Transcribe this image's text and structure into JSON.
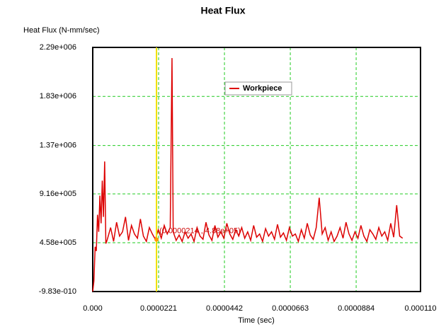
{
  "chart_data": {
    "type": "line",
    "title": "Heat Flux",
    "ylabel": "Heat Flux (N-mm/sec)",
    "xlabel": "Time (sec)",
    "xlim": [
      0,
      0.00011
    ],
    "ylim": [
      -9.83e-10,
      2290000
    ],
    "xticks": [
      {
        "value": 0,
        "label": "0.000"
      },
      {
        "value": 2.21e-05,
        "label": "0.0000221"
      },
      {
        "value": 4.42e-05,
        "label": "0.0000442"
      },
      {
        "value": 6.63e-05,
        "label": "0.0000663"
      },
      {
        "value": 8.84e-05,
        "label": "0.0000884"
      },
      {
        "value": 0.00011,
        "label": "0.000110"
      }
    ],
    "yticks": [
      {
        "value": -9.83e-10,
        "label": "-9.83e-010"
      },
      {
        "value": 458000,
        "label": "4.58e+005"
      },
      {
        "value": 916000,
        "label": "9.16e+005"
      },
      {
        "value": 1370000,
        "label": "1.37e+006"
      },
      {
        "value": 1830000,
        "label": "1.83e+006"
      },
      {
        "value": 2290000,
        "label": "2.29e+006"
      }
    ],
    "grid": true,
    "legend": "top",
    "cursor": {
      "x": 2.14e-05,
      "y": 488000,
      "label": "(0.0000214 , 4.88e+05)"
    },
    "x": [
      0,
      4e-07,
      8e-07,
      1.2e-06,
      1.6e-06,
      2e-06,
      2.4e-06,
      2.8e-06,
      3.2e-06,
      3.6e-06,
      4e-06,
      4.4e-06,
      4.8e-06,
      5.2e-06,
      6e-06,
      7e-06,
      8e-06,
      9e-06,
      1e-05,
      1.1e-05,
      1.2e-05,
      1.3e-05,
      1.4e-05,
      1.5e-05,
      1.6e-05,
      1.7e-05,
      1.8e-05,
      1.9e-05,
      2e-05,
      2.1e-05,
      2.2e-05,
      2.3e-05,
      2.4e-05,
      2.5e-05,
      2.6e-05,
      2.66e-05,
      2.7e-05,
      2.8e-05,
      2.9e-05,
      3e-05,
      3.1e-05,
      3.2e-05,
      3.3e-05,
      3.4e-05,
      3.5e-05,
      3.6e-05,
      3.7e-05,
      3.8e-05,
      3.9e-05,
      4e-05,
      4.1e-05,
      4.2e-05,
      4.3e-05,
      4.4e-05,
      4.5e-05,
      4.6e-05,
      4.7e-05,
      4.8e-05,
      4.9e-05,
      5e-05,
      5.1e-05,
      5.2e-05,
      5.3e-05,
      5.4e-05,
      5.5e-05,
      5.6e-05,
      5.7e-05,
      5.8e-05,
      5.9e-05,
      6e-05,
      6.1e-05,
      6.2e-05,
      6.3e-05,
      6.4e-05,
      6.5e-05,
      6.6e-05,
      6.7e-05,
      6.8e-05,
      6.9e-05,
      7e-05,
      7.1e-05,
      7.2e-05,
      7.3e-05,
      7.4e-05,
      7.5e-05,
      7.6e-05,
      7.7e-05,
      7.8e-05,
      7.9e-05,
      8e-05,
      8.1e-05,
      8.2e-05,
      8.3e-05,
      8.4e-05,
      8.5e-05,
      8.6e-05,
      8.7e-05,
      8.8e-05,
      8.9e-05,
      9e-05,
      9.1e-05,
      9.2e-05,
      9.3e-05,
      9.4e-05,
      9.5e-05,
      9.6e-05,
      9.7e-05,
      9.8e-05,
      9.9e-05,
      0.0001,
      0.000101,
      0.000102,
      0.000103,
      0.000104
    ],
    "series": [
      {
        "name": "Workpiece",
        "color": "#dd0000",
        "values": [
          0,
          100000,
          420000,
          380000,
          720000,
          560000,
          900000,
          640000,
          1040000,
          700000,
          1220000,
          450000,
          480000,
          520000,
          600000,
          470000,
          650000,
          520000,
          560000,
          700000,
          480000,
          620000,
          540000,
          500000,
          680000,
          520000,
          470000,
          600000,
          540000,
          490000,
          580000,
          500000,
          620000,
          540000,
          600000,
          2190000,
          560000,
          480000,
          530000,
          470000,
          560000,
          500000,
          540000,
          470000,
          600000,
          520000,
          490000,
          650000,
          530000,
          480000,
          620000,
          510000,
          560000,
          500000,
          640000,
          540000,
          490000,
          580000,
          520000,
          600000,
          500000,
          560000,
          480000,
          620000,
          510000,
          540000,
          470000,
          590000,
          520000,
          560000,
          490000,
          630000,
          510000,
          550000,
          480000,
          600000,
          520000,
          540000,
          470000,
          580000,
          500000,
          640000,
          530000,
          490000,
          600000,
          880000,
          540000,
          600000,
          480000,
          560000,
          470000,
          520000,
          600000,
          500000,
          650000,
          540000,
          480000,
          560000,
          500000,
          620000,
          520000,
          470000,
          580000,
          540000,
          490000,
          600000,
          520000,
          560000,
          480000,
          640000,
          510000,
          810000,
          520000,
          500000
        ]
      }
    ]
  }
}
